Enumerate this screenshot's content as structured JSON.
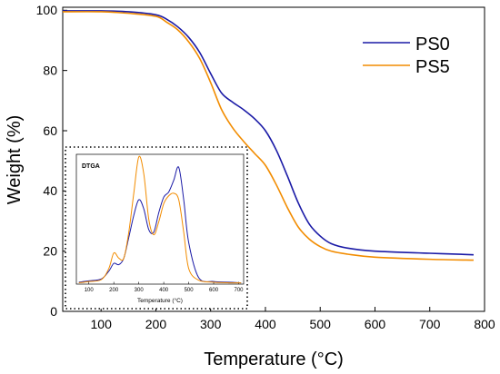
{
  "chart_data": [
    {
      "type": "line",
      "xlabel": "Temperature (°C)",
      "ylabel": "Weight (%)",
      "xlim": [
        30,
        800
      ],
      "ylim": [
        0,
        101
      ],
      "xticks": [
        100,
        200,
        300,
        400,
        500,
        600,
        700,
        800
      ],
      "yticks": [
        0,
        20,
        40,
        60,
        80,
        100
      ],
      "legend_position": "top-right",
      "series": [
        {
          "name": "PS0",
          "color": "#1a1aa6",
          "x": [
            30,
            100,
            150,
            200,
            220,
            240,
            260,
            280,
            300,
            320,
            340,
            360,
            380,
            400,
            420,
            440,
            460,
            480,
            500,
            520,
            550,
            600,
            700,
            780
          ],
          "y": [
            99.8,
            99.8,
            99.5,
            98.5,
            97,
            94.5,
            91,
            86,
            79,
            72.5,
            69.5,
            67,
            64,
            60,
            53.5,
            45,
            36,
            29,
            25,
            22.5,
            21,
            20,
            19.3,
            18.8
          ]
        },
        {
          "name": "PS5",
          "color": "#f28c00",
          "x": [
            30,
            100,
            150,
            200,
            220,
            240,
            260,
            280,
            300,
            320,
            340,
            360,
            380,
            400,
            420,
            440,
            460,
            480,
            500,
            520,
            550,
            600,
            700,
            780
          ],
          "y": [
            99.5,
            99.5,
            99,
            98,
            96,
            93.5,
            89.5,
            84,
            76,
            67,
            61,
            56.5,
            52.5,
            48.5,
            42,
            34.5,
            28,
            24,
            21.5,
            20,
            19,
            18,
            17.3,
            17
          ]
        }
      ]
    },
    {
      "type": "line",
      "title": "DTGA",
      "xlabel": "Temperature (°C)",
      "ylabel": "",
      "xlim": [
        50,
        720
      ],
      "ylim": [
        0,
        1
      ],
      "xticks": [
        100,
        200,
        300,
        400,
        500,
        600,
        700
      ],
      "series": [
        {
          "name": "PS0",
          "color": "#1a1aa6",
          "x": [
            60,
            100,
            150,
            180,
            200,
            220,
            240,
            260,
            280,
            300,
            320,
            340,
            360,
            380,
            400,
            420,
            440,
            460,
            480,
            500,
            540,
            600,
            660,
            710
          ],
          "y": [
            0.015,
            0.025,
            0.04,
            0.1,
            0.16,
            0.15,
            0.2,
            0.36,
            0.53,
            0.65,
            0.58,
            0.42,
            0.4,
            0.55,
            0.67,
            0.71,
            0.8,
            0.9,
            0.65,
            0.32,
            0.05,
            0.02,
            0.015,
            0.01
          ]
        },
        {
          "name": "PS5",
          "color": "#f28c00",
          "x": [
            60,
            100,
            150,
            180,
            200,
            220,
            240,
            260,
            280,
            300,
            320,
            340,
            360,
            380,
            400,
            420,
            440,
            460,
            480,
            500,
            540,
            600,
            660,
            710
          ],
          "y": [
            0.01,
            0.02,
            0.035,
            0.12,
            0.24,
            0.2,
            0.2,
            0.4,
            0.7,
            0.98,
            0.85,
            0.5,
            0.38,
            0.48,
            0.62,
            0.68,
            0.7,
            0.65,
            0.4,
            0.12,
            0.03,
            0.015,
            0.01,
            0.01
          ]
        }
      ]
    }
  ]
}
